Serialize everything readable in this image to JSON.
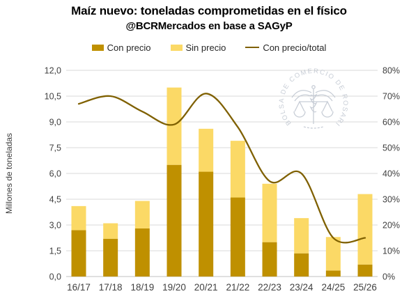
{
  "header": {
    "title": "Maíz nuevo: toneladas comprometidas en el físico",
    "subtitle": "@BCRMercados en base a SAGyP"
  },
  "legend": {
    "items": [
      {
        "label": "Con precio",
        "kind": "swatch",
        "color": "#BF9000"
      },
      {
        "label": "Sin precio",
        "kind": "swatch",
        "color": "#FBD966"
      },
      {
        "label": "Con precio/total",
        "kind": "line",
        "color": "#7F6000"
      }
    ]
  },
  "watermark": {
    "text": "BOLSA DE COMERCIO DE ROSARIO",
    "icon": "caduceus-scales-icon",
    "color": "#c5cbd4"
  },
  "chart_data": {
    "type": "bar",
    "subtype": "stacked-bars-with-ratio-line",
    "title": "Maíz nuevo: toneladas comprometidas en el físico",
    "subtitle": "@BCRMercados en base a SAGyP",
    "categories": [
      "16/17",
      "17/18",
      "18/19",
      "19/20",
      "20/21",
      "21/22",
      "22/23",
      "23/24",
      "24/25",
      "25/26"
    ],
    "series": [
      {
        "name": "Con precio",
        "type": "bar",
        "stack": true,
        "axis": "left",
        "color": "#BF9000",
        "values": [
          2.7,
          2.2,
          2.8,
          6.5,
          6.1,
          4.6,
          2.0,
          1.35,
          0.35,
          0.7
        ]
      },
      {
        "name": "Sin precio",
        "type": "bar",
        "stack": true,
        "axis": "left",
        "color": "#FBD966",
        "values": [
          1.4,
          0.9,
          1.6,
          4.5,
          2.5,
          3.3,
          3.4,
          2.05,
          1.95,
          4.1
        ]
      },
      {
        "name": "Con precio/total",
        "type": "line",
        "axis": "right",
        "color": "#7F6000",
        "values": [
          67,
          70,
          64,
          59,
          71,
          58,
          37,
          40,
          15,
          15
        ],
        "unit": "%"
      }
    ],
    "left_axis": {
      "label": "Millones de toneladas",
      "min": 0,
      "max": 12,
      "step": 1.5,
      "ticks": [
        "0,0",
        "1,5",
        "3,0",
        "4,5",
        "6,0",
        "7,5",
        "9,0",
        "10,5",
        "12,0"
      ]
    },
    "right_axis": {
      "label": "",
      "min": 0,
      "max": 80,
      "step": 10,
      "ticks": [
        "0%",
        "10%",
        "20%",
        "30%",
        "40%",
        "50%",
        "60%",
        "70%",
        "80%"
      ]
    },
    "grid": "horizontal",
    "legend_position": "top",
    "colors": {
      "gridline": "#d9d9d9",
      "baseline": "#c0c0c0",
      "tick_text": "#404040",
      "title_text": "#000000"
    }
  }
}
